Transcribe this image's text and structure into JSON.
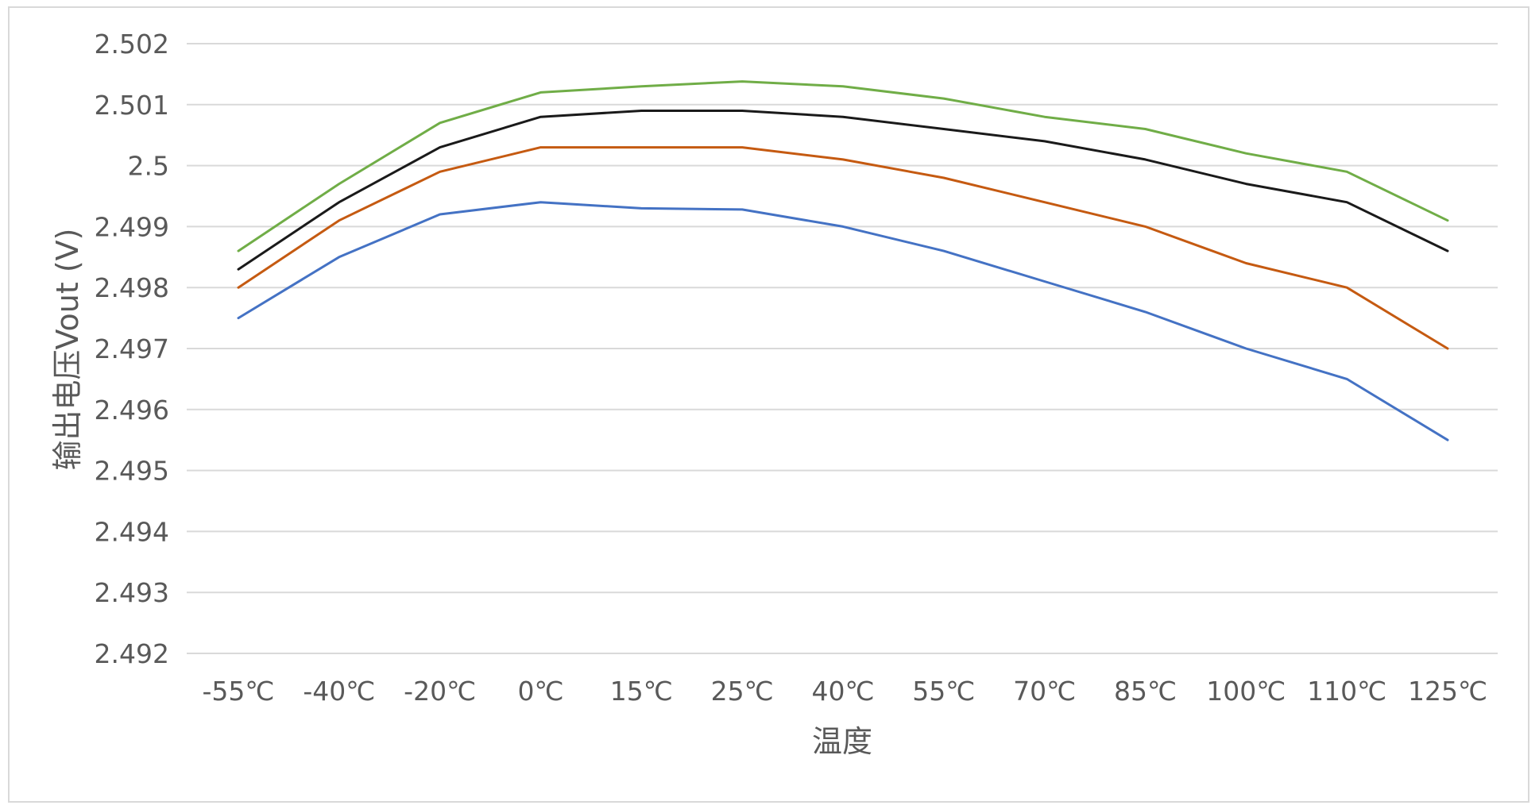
{
  "chart_data": {
    "type": "line",
    "title": "",
    "xlabel": "温度",
    "ylabel": "输出电压Vout (V)",
    "ylim": [
      2.492,
      2.502
    ],
    "y_ticks": [
      "2.492",
      "2.493",
      "2.494",
      "2.495",
      "2.496",
      "2.497",
      "2.498",
      "2.499",
      "2.5",
      "2.501",
      "2.502"
    ],
    "grid": true,
    "legend": "none",
    "categories": [
      "-55℃",
      "-40℃",
      "-20℃",
      "0℃",
      "15℃",
      "25℃",
      "40℃",
      "55℃",
      "70℃",
      "85℃",
      "100℃",
      "110℃",
      "125℃"
    ],
    "series": [
      {
        "color": "#70ad47",
        "values": [
          2.4986,
          2.4997,
          2.5007,
          2.5012,
          2.5013,
          2.50138,
          2.5013,
          2.5011,
          2.5008,
          2.5006,
          2.5002,
          2.4999,
          2.4991
        ]
      },
      {
        "color": "#1a1a1a",
        "values": [
          2.4983,
          2.4994,
          2.5003,
          2.5008,
          2.5009,
          2.5009,
          2.5008,
          2.5006,
          2.5004,
          2.5001,
          2.4997,
          2.4994,
          2.4986
        ]
      },
      {
        "color": "#c55a11",
        "values": [
          2.498,
          2.4991,
          2.4999,
          2.5003,
          2.5003,
          2.5003,
          2.5001,
          2.4998,
          2.4994,
          2.499,
          2.4984,
          2.498,
          2.497
        ]
      },
      {
        "color": "#4472c4",
        "values": [
          2.4975,
          2.4985,
          2.4992,
          2.4994,
          2.4993,
          2.49928,
          2.499,
          2.4986,
          2.4981,
          2.4976,
          2.497,
          2.4965,
          2.4955
        ]
      }
    ]
  }
}
